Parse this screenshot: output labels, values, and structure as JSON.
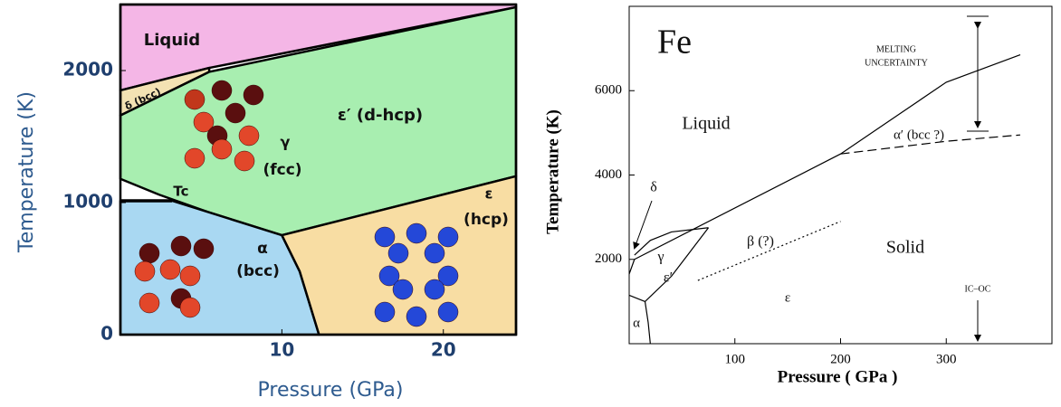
{
  "chart_data": [
    {
      "type": "phase",
      "x_label": "Pressure (GPa)",
      "y_label": "Temperature (K)",
      "xlim": [
        0,
        24.5
      ],
      "ylim": [
        0,
        2500
      ],
      "xticks": [
        10,
        20
      ],
      "yticks": [
        0,
        1000,
        2000
      ],
      "regions": [
        {
          "color": "#f4b6e6",
          "x": [
            0,
            24.5,
            24.5,
            5.5,
            0
          ],
          "y": [
            2500,
            2500,
            2480,
            2020,
            1850
          ]
        },
        {
          "color": "#f3e2b3",
          "x": [
            0,
            5.5,
            5.5,
            0
          ],
          "y": [
            1850,
            2020,
            1990,
            1660
          ]
        },
        {
          "color": "#a8eeb0",
          "x": [
            0,
            5.5,
            24.5,
            24.5,
            10,
            5.5,
            2.4,
            0
          ],
          "y": [
            1660,
            1990,
            2480,
            1200,
            753,
            925,
            1060,
            1180
          ]
        },
        {
          "color": "#a9d8f2",
          "x": [
            0,
            3.2,
            10,
            11.1,
            12.3,
            0
          ],
          "y": [
            1014,
            1014,
            753,
            480,
            0,
            0
          ]
        },
        {
          "color": "#f8dda3",
          "x": [
            10,
            24.5,
            24.5,
            12.3,
            11.1
          ],
          "y": [
            753,
            1200,
            0,
            0,
            480
          ]
        }
      ],
      "series": [
        {
          "color": "#000000",
          "style": "solid",
          "x": [
            0,
            3.2
          ],
          "values": [
            1014,
            1014
          ]
        }
      ],
      "annotations": [
        "Liquid",
        "δ (bcc)",
        "ε′ (d-hcp)",
        "γ",
        "(fcc)",
        "Tc",
        "ε",
        "(hcp)",
        "α",
        "(bcc)"
      ]
    },
    {
      "type": "phase",
      "x_label": "Pressure ( GPa )",
      "y_label": "Temperature (K)",
      "xlim": [
        0,
        400
      ],
      "ylim": [
        0,
        8000
      ],
      "xticks": [
        100,
        200,
        300
      ],
      "yticks": [
        2000,
        4000,
        6000
      ],
      "regions": [],
      "series": [
        {
          "color": "#000000",
          "style": "solid",
          "x": [
            5,
            200,
            300,
            370
          ],
          "values": [
            2000,
            4500,
            6200,
            6850
          ]
        },
        {
          "color": "#000000",
          "style": "solid",
          "x": [
            5,
            20,
            40,
            75
          ],
          "values": [
            2100,
            2450,
            2650,
            2750
          ]
        },
        {
          "color": "#000000",
          "style": "dashed",
          "x": [
            200,
            250,
            300,
            370
          ],
          "values": [
            4500,
            4650,
            4800,
            4950
          ]
        },
        {
          "color": "#000000",
          "style": "dotted",
          "x": [
            65,
            200
          ],
          "values": [
            1500,
            2900
          ]
        },
        {
          "color": "#000000",
          "style": "solid",
          "x": [
            0,
            15,
            40,
            75
          ],
          "values": [
            1150,
            1000,
            1600,
            2750
          ]
        },
        {
          "color": "#000000",
          "style": "solid",
          "x": [
            0,
            5
          ],
          "values": [
            1650,
            2000
          ]
        },
        {
          "color": "#000000",
          "style": "solid",
          "x": [
            15,
            18,
            20
          ],
          "values": [
            1000,
            500,
            0
          ]
        }
      ],
      "annotations": [
        "Fe",
        "MELTING",
        "UNCERTAINTY",
        "Liquid",
        "α′ (bcc ?)",
        "δ",
        "γ",
        "ε′",
        "β (?)",
        "Solid",
        "ε",
        "IC–OC",
        "α"
      ]
    }
  ]
}
